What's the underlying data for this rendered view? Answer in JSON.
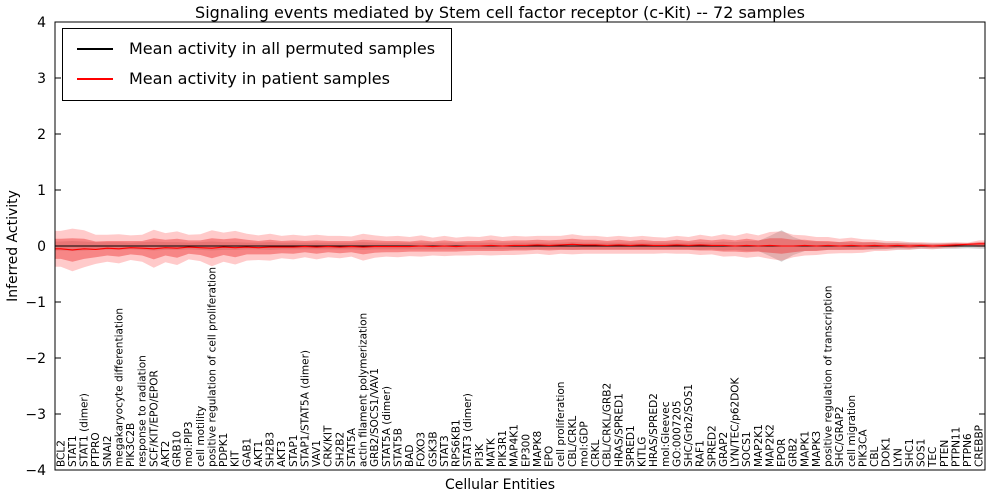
{
  "figure": {
    "title": "Signaling events mediated by Stem cell factor receptor (c-Kit) -- 72 samples",
    "sample_count_in_title": "72 samples"
  },
  "chart_data": {
    "type": "line",
    "title": "Signaling events mediated by Stem cell factor receptor (c-Kit) -- 72 samples",
    "xlabel": "Cellular Entities",
    "ylabel": "Inferred Activity",
    "ylim": [
      -4,
      4
    ],
    "yticks": [
      -4,
      -3,
      -2,
      -1,
      0,
      1,
      2,
      3,
      4
    ],
    "grid": false,
    "legend": {
      "position": "upper left",
      "items": [
        {
          "label": "Mean activity in all permuted samples",
          "color": "#000000"
        },
        {
          "label": "Mean activity in patient samples",
          "color": "#ff0000"
        }
      ]
    },
    "categories": [
      "BCL2",
      "STAT1",
      "STAT1 (dimer)",
      "PTPRO",
      "SNAI2",
      "megakaryocyte differentiation",
      "PIK3C2B",
      "response to radiation",
      "SCF/KIT/EPO/EPOR",
      "AKT2",
      "GRB10",
      "mol:PIP3",
      "cell motility",
      "positive regulation of cell proliferation",
      "PDPK1",
      "KIT",
      "GAB1",
      "AKT1",
      "SH2B3",
      "AKT3",
      "STAP1",
      "STAP1/STAT5A (dimer)",
      "VAV1",
      "CRK/KIT",
      "SH2B2",
      "STAT5A",
      "actin filament polymerization",
      "GRB2/SOCS1/VAV1",
      "STAT5A (dimer)",
      "STAT5B",
      "BAD",
      "FOXO3",
      "GSK3B",
      "STAT3",
      "RPS6KB1",
      "STAT3 (dimer)",
      "PI3K",
      "MATK",
      "PIK3R1",
      "MAP4K1",
      "EP300",
      "MAPK8",
      "EPO",
      "cell proliferation",
      "CBL/CRKL",
      "mol:GDP",
      "CRKL",
      "CBL/CRKL/GRB2",
      "HRAS/SPRED1",
      "SPRED1",
      "KITLG",
      "HRAS/SPRED2",
      "mol:Gleevec",
      "GO:0007205",
      "SHC/Grb2/SOS1",
      "RAF1",
      "SPRED2",
      "GRAP2",
      "LYN/TEC/p62DOK",
      "SOCS1",
      "MAP2K1",
      "MAP2K2",
      "EPOR",
      "GRB2",
      "MAPK1",
      "MAPK3",
      "positive regulation of transcription",
      "SHC/GRAP2",
      "cell migration",
      "PIK3CA",
      "CBL",
      "DOK1",
      "LYN",
      "SHC1",
      "SOS1",
      "TEC",
      "PTEN",
      "PTPN11",
      "PTPN6",
      "CREBBP"
    ],
    "series": [
      {
        "name": "Mean activity in all permuted samples",
        "color": "#000000",
        "values": [
          0,
          0,
          0,
          0,
          0,
          0,
          0,
          0,
          0,
          0,
          0,
          0,
          0,
          0,
          0,
          0,
          0,
          0,
          0,
          0,
          0,
          0,
          0,
          0,
          0,
          0,
          0,
          0,
          0,
          0,
          0,
          0,
          0,
          0,
          0,
          0,
          0,
          0,
          0,
          0,
          0,
          0,
          0,
          0,
          0,
          0,
          0,
          0,
          0,
          0,
          0,
          0,
          0,
          0,
          0,
          0,
          0,
          0,
          0,
          0,
          0,
          0,
          0,
          0,
          0,
          0,
          0,
          0,
          0,
          0,
          0,
          0,
          0,
          0,
          0,
          0,
          0,
          0,
          0,
          0
        ]
      },
      {
        "name": "Mean activity in patient samples",
        "color": "#ff0000",
        "values": [
          -0.05,
          -0.07,
          -0.05,
          -0.06,
          -0.04,
          -0.05,
          -0.03,
          -0.04,
          -0.05,
          -0.03,
          -0.04,
          -0.02,
          -0.03,
          -0.04,
          -0.02,
          -0.03,
          -0.02,
          -0.03,
          -0.02,
          -0.02,
          -0.02,
          -0.01,
          -0.02,
          -0.01,
          -0.02,
          -0.01,
          -0.02,
          -0.01,
          -0.01,
          -0.01,
          -0.01,
          0,
          -0.01,
          0,
          -0.01,
          0,
          0,
          0.01,
          0,
          0.01,
          0.01,
          0.02,
          0.01,
          0.02,
          0.03,
          0.02,
          0.02,
          0.01,
          0.02,
          0.01,
          0.02,
          0.01,
          0.01,
          0.02,
          0.01,
          0.02,
          0.01,
          0.01,
          0,
          0.01,
          0,
          0.01,
          0,
          0,
          0.01,
          0,
          0.01,
          0,
          0.01,
          0,
          0.01,
          0,
          0.01,
          0,
          0.01,
          0,
          0.01,
          0.02,
          0.03,
          0.04
        ]
      }
    ],
    "bands": [
      {
        "name": "permuted-spread",
        "center_series": 0,
        "color": "#aaaaaa",
        "opacity": 0.5,
        "halfwidths": [
          0.08,
          0.09,
          0.08,
          0.07,
          0.07,
          0.07,
          0.06,
          0.07,
          0.08,
          0.07,
          0.07,
          0.06,
          0.07,
          0.08,
          0.07,
          0.07,
          0.06,
          0.06,
          0.07,
          0.06,
          0.06,
          0.06,
          0.06,
          0.06,
          0.06,
          0.06,
          0.07,
          0.06,
          0.06,
          0.06,
          0.06,
          0.06,
          0.06,
          0.06,
          0.06,
          0.06,
          0.06,
          0.06,
          0.06,
          0.06,
          0.06,
          0.06,
          0.06,
          0.06,
          0.07,
          0.06,
          0.06,
          0.06,
          0.06,
          0.06,
          0.06,
          0.06,
          0.06,
          0.06,
          0.06,
          0.07,
          0.06,
          0.08,
          0.07,
          0.09,
          0.09,
          0.18,
          0.28,
          0.16,
          0.09,
          0.08,
          0.07,
          0.07,
          0.06,
          0.06,
          0.07,
          0.06,
          0.06,
          0.06,
          0.05,
          0.05,
          0.05,
          0.05,
          0.04,
          0.05
        ]
      },
      {
        "name": "patient-spread-outer",
        "center_series": 1,
        "color": "#ff6666",
        "opacity": 0.35,
        "halfwidths": [
          0.32,
          0.38,
          0.33,
          0.26,
          0.24,
          0.26,
          0.22,
          0.24,
          0.34,
          0.26,
          0.3,
          0.22,
          0.24,
          0.32,
          0.26,
          0.3,
          0.24,
          0.22,
          0.24,
          0.2,
          0.22,
          0.19,
          0.22,
          0.19,
          0.2,
          0.18,
          0.24,
          0.2,
          0.18,
          0.19,
          0.17,
          0.19,
          0.16,
          0.18,
          0.16,
          0.17,
          0.16,
          0.18,
          0.16,
          0.17,
          0.16,
          0.16,
          0.17,
          0.16,
          0.18,
          0.16,
          0.16,
          0.15,
          0.16,
          0.15,
          0.16,
          0.15,
          0.14,
          0.16,
          0.15,
          0.18,
          0.16,
          0.2,
          0.18,
          0.22,
          0.19,
          0.24,
          0.26,
          0.2,
          0.18,
          0.16,
          0.15,
          0.13,
          0.14,
          0.12,
          0.1,
          0.09,
          0.08,
          0.07,
          0.06,
          0.06,
          0.05,
          0.05,
          0.03,
          0.06
        ]
      },
      {
        "name": "patient-spread-inner",
        "center_series": 1,
        "color": "#ee3333",
        "opacity": 0.45,
        "halfwidths": [
          0.18,
          0.21,
          0.18,
          0.14,
          0.13,
          0.14,
          0.12,
          0.13,
          0.19,
          0.14,
          0.17,
          0.12,
          0.13,
          0.18,
          0.14,
          0.17,
          0.13,
          0.12,
          0.13,
          0.11,
          0.12,
          0.1,
          0.12,
          0.1,
          0.11,
          0.1,
          0.13,
          0.11,
          0.1,
          0.1,
          0.09,
          0.1,
          0.09,
          0.1,
          0.09,
          0.09,
          0.09,
          0.1,
          0.09,
          0.09,
          0.09,
          0.09,
          0.09,
          0.09,
          0.1,
          0.09,
          0.09,
          0.08,
          0.09,
          0.08,
          0.09,
          0.08,
          0.08,
          0.09,
          0.08,
          0.1,
          0.09,
          0.11,
          0.1,
          0.12,
          0.1,
          0.13,
          0.14,
          0.11,
          0.1,
          0.09,
          0.08,
          0.07,
          0.08,
          0.07,
          0.06,
          0.05,
          0.04,
          0.04,
          0.03,
          0.03,
          0.03,
          0.03,
          0.02,
          0.03
        ]
      }
    ]
  }
}
